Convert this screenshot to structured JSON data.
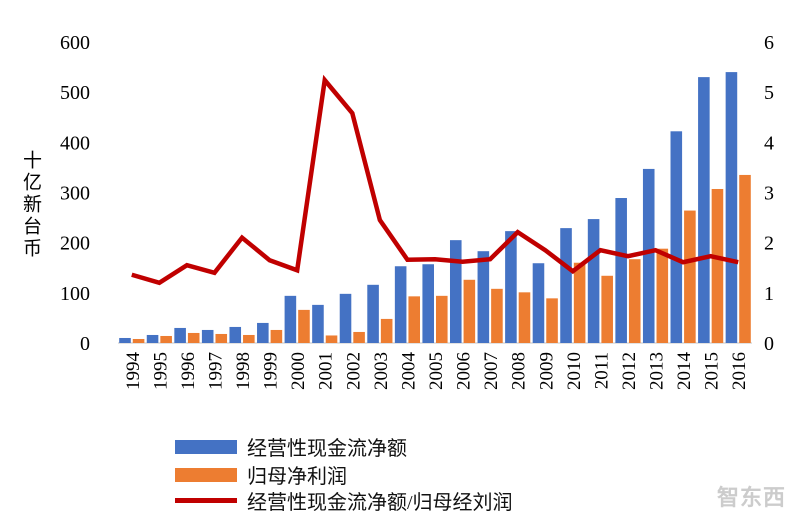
{
  "chart_data": {
    "type": "bar",
    "title": "",
    "ylabel": "十亿新台币",
    "ylim": [
      0,
      600
    ],
    "y2lim": [
      0,
      6
    ],
    "yticks": [
      "0",
      "100",
      "200",
      "300",
      "400",
      "500",
      "600"
    ],
    "y2ticks": [
      "0",
      "1",
      "2",
      "3",
      "4",
      "5",
      "6"
    ],
    "categories": [
      "1994",
      "1995",
      "1996",
      "1997",
      "1998",
      "1999",
      "2000",
      "2001",
      "2002",
      "2003",
      "2004",
      "2005",
      "2006",
      "2007",
      "2008",
      "2009",
      "2010",
      "2011",
      "2012",
      "2013",
      "2014",
      "2015",
      "2016"
    ],
    "series": [
      {
        "name": "经营性现金流净额",
        "type": "bar",
        "axis": "left",
        "color": "#4472C4",
        "values": [
          10,
          16,
          30,
          26,
          32,
          40,
          94,
          76,
          98,
          116,
          153,
          157,
          205,
          183,
          223,
          159,
          229,
          247,
          289,
          347,
          422,
          530,
          540
        ]
      },
      {
        "name": "归母净利润",
        "type": "bar",
        "axis": "left",
        "color": "#ED7D31",
        "values": [
          8,
          14,
          20,
          18,
          16,
          26,
          66,
          15,
          22,
          48,
          93,
          94,
          126,
          108,
          101,
          89,
          160,
          134,
          167,
          188,
          264,
          307,
          335
        ]
      },
      {
        "name": "经营性现金流净额/归母经刘润",
        "type": "line",
        "axis": "right",
        "color": "#C00000",
        "values": [
          1.36,
          1.2,
          1.55,
          1.4,
          2.1,
          1.65,
          1.45,
          5.24,
          4.58,
          2.45,
          1.66,
          1.67,
          1.62,
          1.67,
          2.21,
          1.85,
          1.43,
          1.85,
          1.73,
          1.85,
          1.61,
          1.73,
          1.61
        ]
      }
    ],
    "legend": "bottom-left",
    "grid": false
  },
  "watermark": "智东西"
}
